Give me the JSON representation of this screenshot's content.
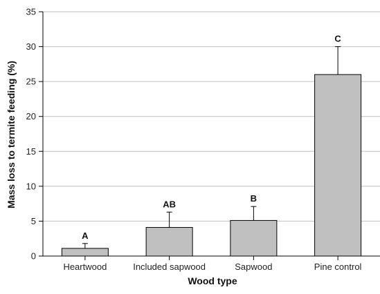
{
  "chart_data": {
    "type": "bar",
    "categories": [
      "Heartwood",
      "Included sapwood",
      "Sapwood",
      "Pine control"
    ],
    "values": [
      1.1,
      4.1,
      5.1,
      26.0
    ],
    "error_upper": [
      1.8,
      6.3,
      7.1,
      30.0
    ],
    "significance_labels": [
      "A",
      "AB",
      "B",
      "C"
    ],
    "title": "",
    "xlabel": "Wood type",
    "ylabel": "Mass loss to termite feeding (%)",
    "ylim": [
      0,
      35
    ],
    "yticks": [
      0,
      5,
      10,
      15,
      20,
      25,
      30,
      35
    ],
    "grid": true,
    "bar_color": "#c0c0c0",
    "grid_color": "#bfbfbf"
  }
}
